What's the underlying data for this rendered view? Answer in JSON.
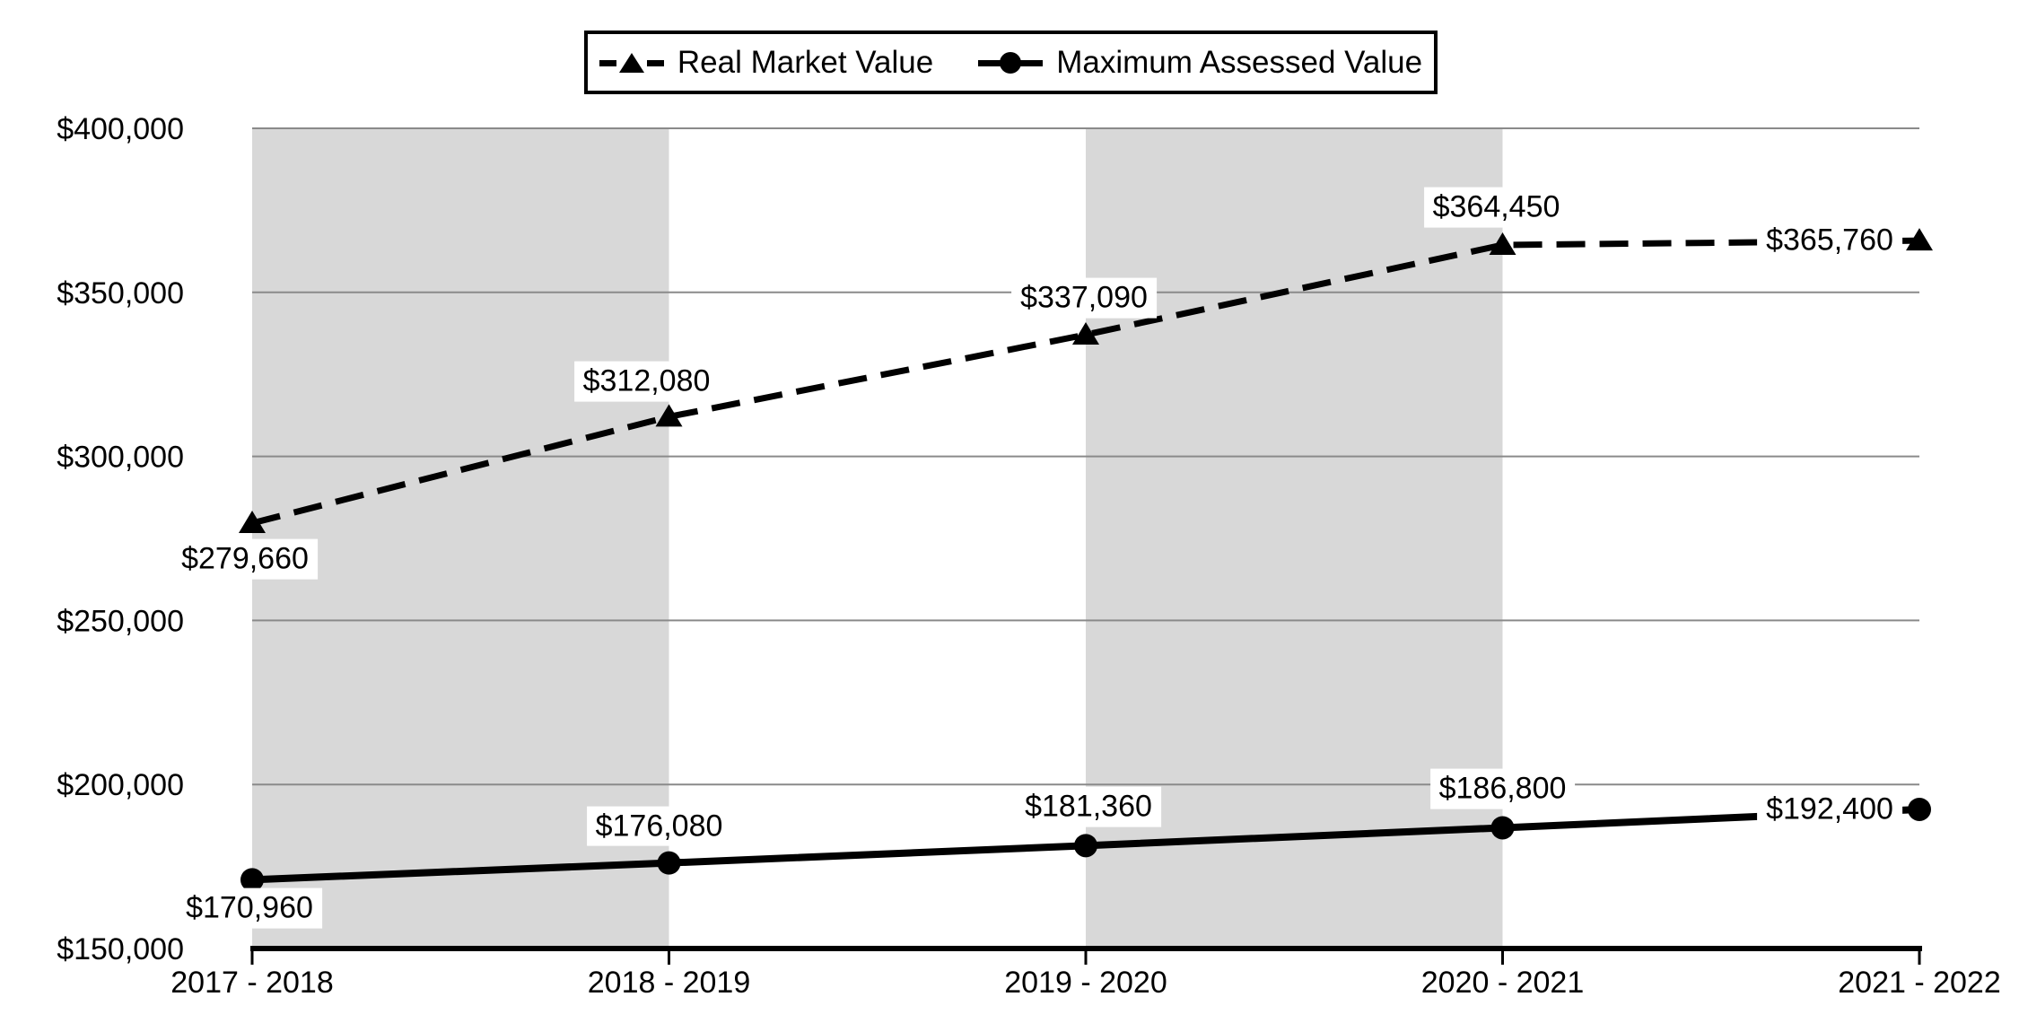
{
  "chart_data": {
    "type": "line",
    "title": "",
    "categories": [
      "2017 - 2018",
      "2018 - 2019",
      "2019 - 2020",
      "2020 - 2021",
      "2021 - 2022"
    ],
    "series": [
      {
        "name": "Real Market Value",
        "line_style": "dashed",
        "marker": "triangle",
        "values": [
          279660,
          312080,
          337090,
          364450,
          365760
        ],
        "labels": [
          "$279,660",
          "$312,080",
          "$337,090",
          "$364,450",
          "$365,760"
        ]
      },
      {
        "name": "Maximum Assessed Value",
        "line_style": "solid",
        "marker": "circle",
        "values": [
          170960,
          176080,
          181360,
          186800,
          192400
        ],
        "labels": [
          "$170,960",
          "$176,080",
          "$181,360",
          "$186,800",
          "$192,400"
        ]
      }
    ],
    "y_axis": {
      "min": 150000,
      "max": 400000,
      "step": 50000,
      "tick_labels": [
        "$150,000",
        "$200,000",
        "$250,000",
        "$300,000",
        "$350,000",
        "$400,000"
      ]
    },
    "x_axis": {
      "tick_labels": [
        "2017 - 2018",
        "2018 - 2019",
        "2019 - 2020",
        "2020 - 2021",
        "2021 - 2022"
      ]
    },
    "shaded_intervals": [
      0,
      2
    ],
    "grid": "horizontal",
    "legend_position": "top",
    "colors": {
      "series": "#000000",
      "band": "#d8d8d8",
      "gridline": "#8a8a8a",
      "axis": "#000000",
      "label_background": "#ffffff",
      "background": "#ffffff"
    }
  }
}
